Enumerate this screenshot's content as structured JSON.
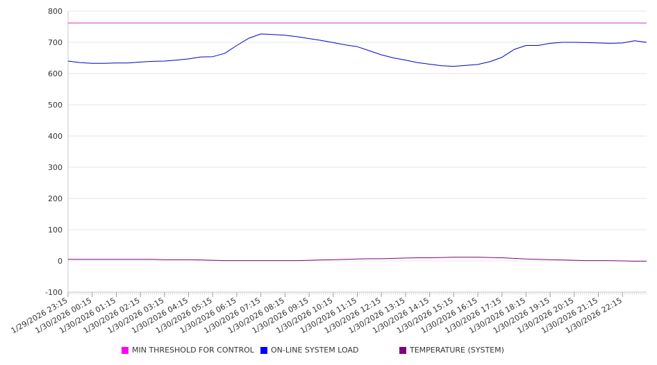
{
  "chart_data": {
    "type": "line",
    "title": "",
    "xlabel": "",
    "ylabel": "",
    "ylim": [
      -100,
      800
    ],
    "yticks": [
      -100,
      0,
      100,
      200,
      300,
      400,
      500,
      600,
      700,
      800
    ],
    "grid": true,
    "legend_position": "bottom",
    "x_start": "1/29/2026 23:15",
    "x_end": "1/30/2026 23:15",
    "x_tick_labels": [
      "1/29/2026 23:15",
      "1/30/2026 00:15",
      "1/30/2026 01:15",
      "1/30/2026 02:15",
      "1/30/2026 03:15",
      "1/30/2026 04:15",
      "1/30/2026 05:15",
      "1/30/2026 06:15",
      "1/30/2026 07:15",
      "1/30/2026 08:15",
      "1/30/2026 09:15",
      "1/30/2026 10:15",
      "1/30/2026 11:15",
      "1/30/2026 12:15",
      "1/30/2026 13:15",
      "1/30/2026 14:15",
      "1/30/2026 15:15",
      "1/30/2026 16:15",
      "1/30/2026 17:15",
      "1/30/2026 18:15",
      "1/30/2026 19:15",
      "1/30/2026 20:15",
      "1/30/2026 21:15",
      "1/30/2026 22:15"
    ],
    "x": [
      "1/29/2026 23:15",
      "1/29/2026 23:45",
      "1/30/2026 00:15",
      "1/30/2026 00:45",
      "1/30/2026 01:15",
      "1/30/2026 01:45",
      "1/30/2026 02:15",
      "1/30/2026 02:45",
      "1/30/2026 03:15",
      "1/30/2026 03:45",
      "1/30/2026 04:15",
      "1/30/2026 04:45",
      "1/30/2026 05:15",
      "1/30/2026 05:45",
      "1/30/2026 06:15",
      "1/30/2026 06:45",
      "1/30/2026 07:15",
      "1/30/2026 07:45",
      "1/30/2026 08:15",
      "1/30/2026 08:45",
      "1/30/2026 09:15",
      "1/30/2026 09:45",
      "1/30/2026 10:15",
      "1/30/2026 10:45",
      "1/30/2026 11:15",
      "1/30/2026 11:45",
      "1/30/2026 12:15",
      "1/30/2026 12:45",
      "1/30/2026 13:15",
      "1/30/2026 13:45",
      "1/30/2026 14:15",
      "1/30/2026 14:45",
      "1/30/2026 15:15",
      "1/30/2026 15:45",
      "1/30/2026 16:15",
      "1/30/2026 16:45",
      "1/30/2026 17:15",
      "1/30/2026 17:45",
      "1/30/2026 18:15",
      "1/30/2026 18:45",
      "1/30/2026 19:15",
      "1/30/2026 19:45",
      "1/30/2026 20:15",
      "1/30/2026 20:45",
      "1/30/2026 21:15",
      "1/30/2026 21:45",
      "1/30/2026 22:15",
      "1/30/2026 22:45",
      "1/30/2026 23:15"
    ],
    "series": [
      {
        "name": "MIN THRESHOLD FOR CONTROL",
        "color": "#cc33cc",
        "values": [
          762,
          762,
          762,
          762,
          762,
          762,
          762,
          762,
          762,
          762,
          762,
          762,
          762,
          762,
          762,
          762,
          762,
          762,
          762,
          762,
          762,
          762,
          762,
          762,
          762,
          762,
          762,
          762,
          762,
          762,
          762,
          762,
          762,
          762,
          762,
          762,
          762,
          762,
          762,
          762,
          762,
          762,
          762,
          762,
          762,
          762,
          762,
          762,
          762
        ]
      },
      {
        "name": "ON-LINE SYSTEM LOAD",
        "color": "#0000cc",
        "values": [
          640,
          635,
          633,
          633,
          634,
          634,
          637,
          639,
          640,
          643,
          647,
          653,
          654,
          665,
          690,
          713,
          727,
          725,
          723,
          718,
          712,
          706,
          699,
          692,
          686,
          673,
          660,
          650,
          643,
          635,
          630,
          625,
          623,
          626,
          629,
          638,
          652,
          677,
          690,
          690,
          697,
          700,
          700,
          699,
          698,
          697,
          698,
          705,
          700
        ]
      },
      {
        "name": "TEMPERATURE (SYSTEM)",
        "color": "#800080",
        "values": [
          5,
          5,
          5,
          5,
          5,
          5,
          5,
          5,
          4,
          4,
          4,
          3,
          2,
          1,
          1,
          1,
          1,
          1,
          1,
          1,
          2,
          3,
          4,
          5,
          6,
          7,
          7,
          8,
          9,
          10,
          10,
          11,
          12,
          12,
          12,
          11,
          10,
          8,
          6,
          5,
          4,
          3,
          2,
          1,
          1,
          1,
          0,
          -1,
          -1
        ]
      }
    ]
  }
}
